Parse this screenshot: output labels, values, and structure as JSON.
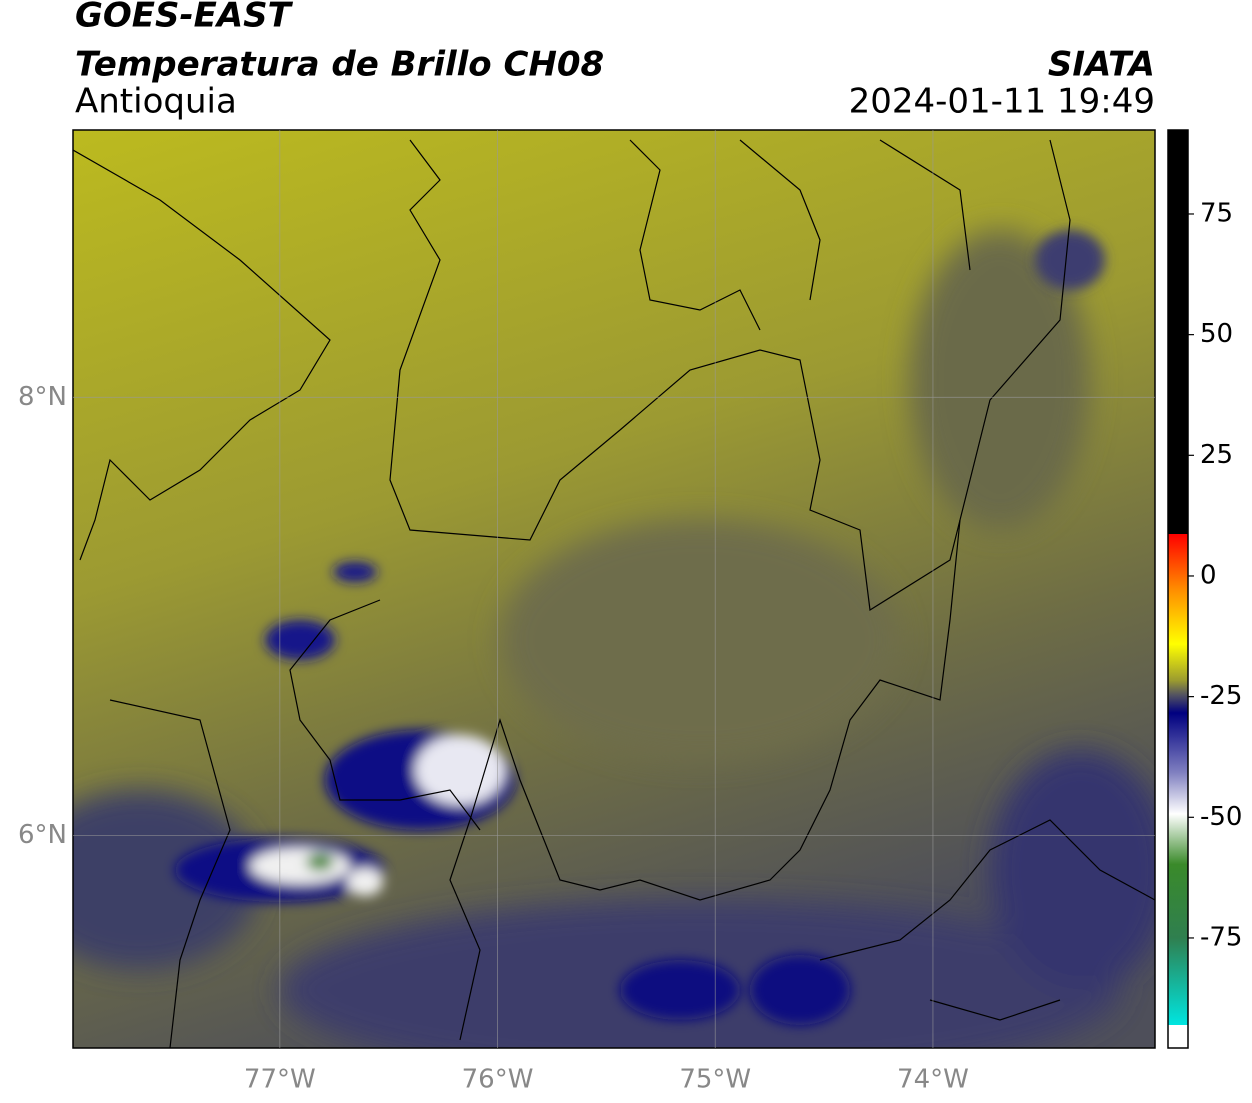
{
  "map": {
    "title": "GOES-EAST",
    "subtitle": "Temperatura de Brillo CH08",
    "region": "Antioquia",
    "source": "SIATA",
    "timestamp": "2024-01-11 19:49",
    "lonlim": [
      -77.95,
      -72.98
    ],
    "latlim": [
      5.03,
      9.22
    ],
    "lon_ticks": [
      {
        "value": -77,
        "label": "77°W"
      },
      {
        "value": -76,
        "label": "76°W"
      },
      {
        "value": -75,
        "label": "75°W"
      },
      {
        "value": -74,
        "label": "74°W"
      }
    ],
    "lat_ticks": [
      {
        "value": 8,
        "label": "8°N"
      },
      {
        "value": 6,
        "label": "6°N"
      }
    ],
    "colorbar": {
      "lim": [
        -97.8,
        92.4
      ],
      "ticks": [
        75,
        50,
        25,
        0,
        -25,
        -50,
        -75
      ]
    }
  }
}
